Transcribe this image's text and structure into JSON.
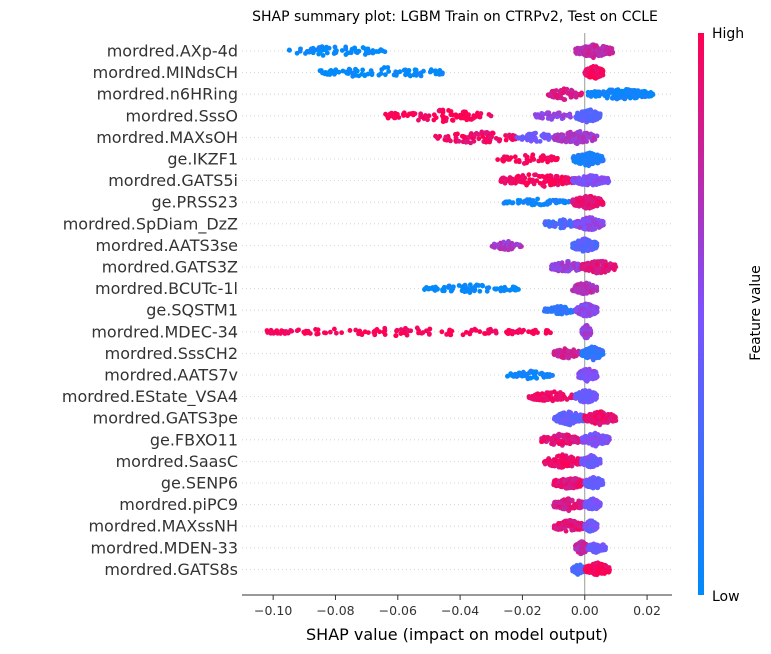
{
  "chart_data": {
    "type": "scatter",
    "title": "SHAP summary plot: LGBM Train on CTRPv2, Test on CCLE",
    "xlabel": "SHAP value (impact on model output)",
    "xlim": [
      -0.11,
      0.028
    ],
    "xticks": [
      -0.1,
      -0.08,
      -0.06,
      -0.04,
      -0.02,
      0.0,
      0.02
    ],
    "xtick_labels": [
      "−0.10",
      "−0.08",
      "−0.06",
      "−0.04",
      "−0.02",
      "0.00",
      "0.02"
    ],
    "colorbar": {
      "label": "Feature value",
      "high": "High",
      "low": "Low",
      "low_color": "#008bfb",
      "high_color": "#ff0052"
    },
    "features": [
      {
        "name": "mordred.AXp-4d",
        "min": -0.095,
        "max": 0.009,
        "groups": [
          {
            "from": -0.095,
            "to": -0.064,
            "c": 0.0,
            "n": 70,
            "s": 0.8
          },
          {
            "from": -0.003,
            "to": 0.009,
            "c": 0.75,
            "n": 150,
            "s": 1.0
          }
        ]
      },
      {
        "name": "mordred.MINdsCH",
        "min": -0.085,
        "max": 0.006,
        "groups": [
          {
            "from": -0.085,
            "to": -0.043,
            "c": 0.0,
            "n": 80,
            "s": 0.8
          },
          {
            "from": 0.0,
            "to": 0.006,
            "c": 0.98,
            "n": 120,
            "s": 1.0
          }
        ]
      },
      {
        "name": "mordred.n6HRing",
        "min": -0.012,
        "max": 0.022,
        "groups": [
          {
            "from": -0.012,
            "to": -0.001,
            "c": 0.85,
            "n": 60,
            "s": 0.8
          },
          {
            "from": 0.001,
            "to": 0.022,
            "c": 0.05,
            "n": 140,
            "s": 0.8
          }
        ]
      },
      {
        "name": "mordred.SssO",
        "min": -0.064,
        "max": 0.005,
        "groups": [
          {
            "from": -0.064,
            "to": -0.03,
            "c": 1.0,
            "n": 90,
            "s": 0.9
          },
          {
            "from": -0.016,
            "to": -0.004,
            "c": 0.6,
            "n": 40,
            "s": 0.6
          },
          {
            "from": -0.003,
            "to": 0.005,
            "c": 0.35,
            "n": 120,
            "s": 1.0
          }
        ]
      },
      {
        "name": "mordred.MAXsOH",
        "min": -0.048,
        "max": 0.004,
        "groups": [
          {
            "from": -0.048,
            "to": -0.022,
            "c": 0.95,
            "n": 80,
            "s": 0.9
          },
          {
            "from": -0.022,
            "to": -0.01,
            "c": 0.45,
            "n": 40,
            "s": 0.7
          },
          {
            "from": -0.01,
            "to": 0.004,
            "c": 0.65,
            "n": 110,
            "s": 1.0
          }
        ]
      },
      {
        "name": "ge.IKZF1",
        "min": -0.028,
        "max": 0.006,
        "groups": [
          {
            "from": -0.028,
            "to": -0.008,
            "c": 1.0,
            "n": 50,
            "s": 0.7
          },
          {
            "from": -0.004,
            "to": 0.006,
            "c": 0.1,
            "n": 140,
            "s": 1.0
          }
        ]
      },
      {
        "name": "mordred.GATS5i",
        "min": -0.027,
        "max": 0.008,
        "groups": [
          {
            "from": -0.027,
            "to": -0.004,
            "c": 0.97,
            "n": 110,
            "s": 1.0
          },
          {
            "from": -0.004,
            "to": 0.008,
            "c": 0.5,
            "n": 120,
            "s": 0.8
          }
        ]
      },
      {
        "name": "ge.PRSS23",
        "min": -0.026,
        "max": 0.006,
        "groups": [
          {
            "from": -0.026,
            "to": -0.005,
            "c": 0.05,
            "n": 60,
            "s": 0.5
          },
          {
            "from": -0.004,
            "to": 0.006,
            "c": 0.9,
            "n": 130,
            "s": 1.0
          }
        ]
      },
      {
        "name": "mordred.SpDiam_DzZ",
        "min": -0.013,
        "max": 0.006,
        "groups": [
          {
            "from": -0.013,
            "to": -0.003,
            "c": 0.3,
            "n": 70,
            "s": 0.8
          },
          {
            "from": -0.003,
            "to": 0.006,
            "c": 0.55,
            "n": 130,
            "s": 1.0
          }
        ]
      },
      {
        "name": "mordred.AATS3se",
        "min": -0.03,
        "max": 0.004,
        "groups": [
          {
            "from": -0.03,
            "to": -0.02,
            "c": 0.65,
            "n": 40,
            "s": 0.7
          },
          {
            "from": -0.004,
            "to": 0.004,
            "c": 0.35,
            "n": 140,
            "s": 1.0
          }
        ]
      },
      {
        "name": "mordred.GATS3Z",
        "min": -0.011,
        "max": 0.01,
        "groups": [
          {
            "from": -0.011,
            "to": -0.001,
            "c": 0.6,
            "n": 90,
            "s": 0.9
          },
          {
            "from": -0.001,
            "to": 0.01,
            "c": 0.88,
            "n": 130,
            "s": 1.0
          }
        ]
      },
      {
        "name": "mordred.BCUTc-1l",
        "min": -0.052,
        "max": 0.004,
        "groups": [
          {
            "from": -0.052,
            "to": -0.021,
            "c": 0.0,
            "n": 70,
            "s": 0.6
          },
          {
            "from": -0.004,
            "to": 0.004,
            "c": 0.7,
            "n": 100,
            "s": 0.9
          }
        ]
      },
      {
        "name": "ge.SQSTM1",
        "min": -0.013,
        "max": 0.004,
        "groups": [
          {
            "from": -0.013,
            "to": -0.003,
            "c": 0.15,
            "n": 50,
            "s": 0.6
          },
          {
            "from": -0.003,
            "to": 0.004,
            "c": 0.55,
            "n": 130,
            "s": 1.0
          }
        ]
      },
      {
        "name": "mordred.MDEC-34",
        "min": -0.102,
        "max": 0.002,
        "groups": [
          {
            "from": -0.102,
            "to": -0.01,
            "c": 1.0,
            "n": 140,
            "s": 0.6
          },
          {
            "from": -0.001,
            "to": 0.002,
            "c": 0.6,
            "n": 70,
            "s": 1.0
          }
        ]
      },
      {
        "name": "mordred.SssCH2",
        "min": -0.01,
        "max": 0.006,
        "groups": [
          {
            "from": -0.01,
            "to": -0.001,
            "c": 0.8,
            "n": 80,
            "s": 0.8
          },
          {
            "from": -0.001,
            "to": 0.006,
            "c": 0.2,
            "n": 120,
            "s": 1.0
          }
        ]
      },
      {
        "name": "mordred.AATS7v",
        "min": -0.025,
        "max": 0.004,
        "groups": [
          {
            "from": -0.025,
            "to": -0.01,
            "c": 0.05,
            "n": 60,
            "s": 0.6
          },
          {
            "from": -0.002,
            "to": 0.004,
            "c": 0.5,
            "n": 110,
            "s": 1.0
          }
        ]
      },
      {
        "name": "mordred.EState_VSA4",
        "min": -0.018,
        "max": 0.004,
        "groups": [
          {
            "from": -0.018,
            "to": -0.003,
            "c": 0.95,
            "n": 90,
            "s": 0.8
          },
          {
            "from": -0.003,
            "to": 0.004,
            "c": 0.4,
            "n": 130,
            "s": 1.0
          }
        ]
      },
      {
        "name": "mordred.GATS3pe",
        "min": -0.01,
        "max": 0.01,
        "groups": [
          {
            "from": -0.01,
            "to": 0.0,
            "c": 0.4,
            "n": 100,
            "s": 1.0
          },
          {
            "from": 0.0,
            "to": 0.01,
            "c": 0.92,
            "n": 130,
            "s": 1.0
          }
        ]
      },
      {
        "name": "ge.FBXO11",
        "min": -0.014,
        "max": 0.008,
        "groups": [
          {
            "from": -0.014,
            "to": -0.001,
            "c": 0.9,
            "n": 100,
            "s": 0.9
          },
          {
            "from": -0.001,
            "to": 0.008,
            "c": 0.5,
            "n": 130,
            "s": 1.0
          }
        ]
      },
      {
        "name": "mordred.SaasC",
        "min": -0.013,
        "max": 0.005,
        "groups": [
          {
            "from": -0.013,
            "to": -0.001,
            "c": 0.95,
            "n": 100,
            "s": 1.0
          },
          {
            "from": -0.001,
            "to": 0.005,
            "c": 0.45,
            "n": 100,
            "s": 0.9
          }
        ]
      },
      {
        "name": "ge.SENP6",
        "min": -0.01,
        "max": 0.006,
        "groups": [
          {
            "from": -0.01,
            "to": 0.0,
            "c": 0.9,
            "n": 100,
            "s": 0.9
          },
          {
            "from": 0.0,
            "to": 0.006,
            "c": 0.4,
            "n": 100,
            "s": 0.9
          }
        ]
      },
      {
        "name": "mordred.piPC9",
        "min": -0.01,
        "max": 0.005,
        "groups": [
          {
            "from": -0.01,
            "to": 0.0,
            "c": 0.85,
            "n": 100,
            "s": 0.9
          },
          {
            "from": 0.0,
            "to": 0.005,
            "c": 0.45,
            "n": 100,
            "s": 0.9
          }
        ]
      },
      {
        "name": "mordred.MAXssNH",
        "min": -0.01,
        "max": 0.004,
        "groups": [
          {
            "from": -0.01,
            "to": 0.0,
            "c": 0.9,
            "n": 100,
            "s": 0.9
          },
          {
            "from": 0.0,
            "to": 0.004,
            "c": 0.45,
            "n": 100,
            "s": 0.9
          }
        ]
      },
      {
        "name": "mordred.MDEN-33",
        "min": -0.003,
        "max": 0.007,
        "groups": [
          {
            "from": -0.003,
            "to": 0.001,
            "c": 0.75,
            "n": 110,
            "s": 1.0
          },
          {
            "from": 0.001,
            "to": 0.007,
            "c": 0.45,
            "n": 90,
            "s": 0.8
          }
        ]
      },
      {
        "name": "mordred.GATS8s",
        "min": -0.004,
        "max": 0.008,
        "groups": [
          {
            "from": -0.004,
            "to": 0.0,
            "c": 0.3,
            "n": 60,
            "s": 0.8
          },
          {
            "from": 0.0,
            "to": 0.008,
            "c": 0.97,
            "n": 120,
            "s": 1.0
          }
        ]
      }
    ]
  }
}
